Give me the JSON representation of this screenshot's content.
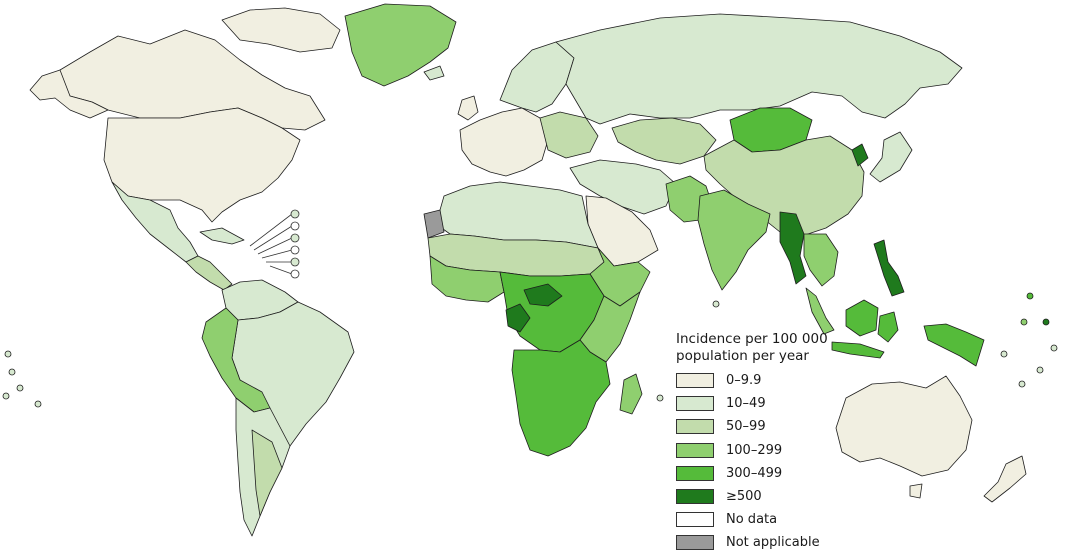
{
  "legend": {
    "title_line1": "Incidence per 100 000",
    "title_line2": "population per year",
    "items": [
      {
        "label": "0–9.9",
        "color": "#f1efe1"
      },
      {
        "label": "10–49",
        "color": "#d7e9d0"
      },
      {
        "label": "50–99",
        "color": "#c2dcac"
      },
      {
        "label": "100–299",
        "color": "#8fcf6f"
      },
      {
        "label": "300–499",
        "color": "#55bb3a"
      },
      {
        "label": "≥500",
        "color": "#1f7a1d"
      },
      {
        "label": "No data",
        "color": "#ffffff"
      },
      {
        "label": "Not applicable",
        "color": "#9a9a9a"
      }
    ]
  }
}
